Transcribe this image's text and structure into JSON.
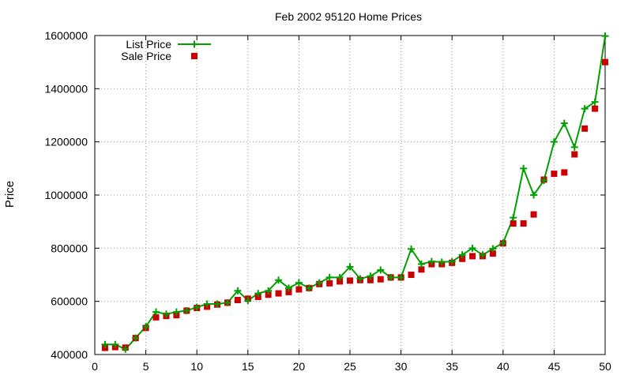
{
  "chart_data": {
    "type": "line",
    "title": "Feb 2002 95120 Home Prices",
    "xlabel": "",
    "ylabel": "Price",
    "xlim": [
      0,
      50
    ],
    "ylim": [
      400000,
      1600000
    ],
    "x_ticks": [
      0,
      5,
      10,
      15,
      20,
      25,
      30,
      35,
      40,
      45,
      50
    ],
    "y_ticks": [
      400000,
      600000,
      800000,
      1000000,
      1200000,
      1400000,
      1600000
    ],
    "x_tick_labels": [
      "0",
      "5",
      "10",
      "15",
      "20",
      "25",
      "30",
      "35",
      "40",
      "45",
      "50"
    ],
    "y_tick_labels": [
      "400000",
      "600000",
      "800000",
      "1000000",
      "1200000",
      "1400000",
      "1600000"
    ],
    "grid": true,
    "legend_position": "top-left",
    "x": [
      1,
      2,
      3,
      4,
      5,
      6,
      7,
      8,
      9,
      10,
      11,
      12,
      13,
      14,
      15,
      16,
      17,
      18,
      19,
      20,
      21,
      22,
      23,
      24,
      25,
      26,
      27,
      28,
      29,
      30,
      31,
      32,
      33,
      34,
      35,
      36,
      37,
      38,
      39,
      40,
      41,
      42,
      43,
      44,
      45,
      46,
      47,
      48,
      49,
      50
    ],
    "series": [
      {
        "name": "List Price",
        "style": "linespoints",
        "color": "#00a000",
        "values": [
          438000,
          438000,
          420000,
          462000,
          505000,
          560000,
          552000,
          560000,
          565000,
          578000,
          590000,
          590000,
          595000,
          640000,
          603000,
          630000,
          640000,
          680000,
          650000,
          670000,
          650000,
          670000,
          690000,
          690000,
          730000,
          685000,
          695000,
          718000,
          690000,
          690000,
          797000,
          740000,
          750000,
          748000,
          750000,
          775000,
          800000,
          775000,
          798000,
          820000,
          915000,
          1100000,
          1000000,
          1055000,
          1200000,
          1270000,
          1180000,
          1325000,
          1350000,
          1598000
        ]
      },
      {
        "name": "Sale Price",
        "style": "points",
        "color": "#cc0000",
        "values": [
          425000,
          428000,
          426000,
          462000,
          500000,
          540000,
          545000,
          548000,
          565000,
          575000,
          580000,
          588000,
          595000,
          605000,
          610000,
          617000,
          625000,
          630000,
          635000,
          645000,
          650000,
          665000,
          668000,
          675000,
          678000,
          680000,
          680000,
          683000,
          690000,
          690000,
          700000,
          720000,
          740000,
          740000,
          745000,
          760000,
          770000,
          770000,
          780000,
          818000,
          893000,
          893000,
          927000,
          1058000,
          1080000,
          1085000,
          1153000,
          1250000,
          1325000,
          1500000
        ]
      }
    ]
  }
}
